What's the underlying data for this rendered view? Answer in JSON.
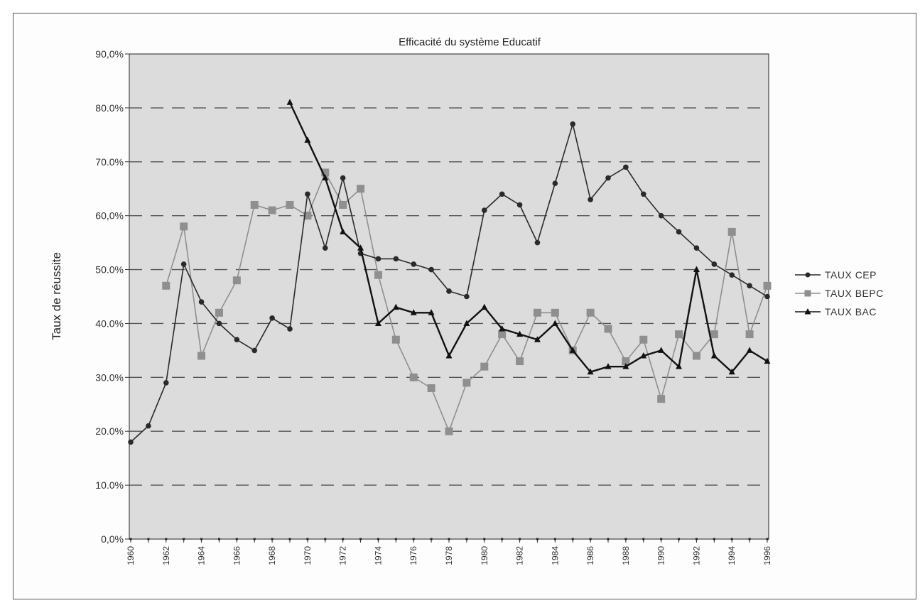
{
  "chart_data": {
    "type": "line",
    "title": "Efficacité du système Educatif",
    "xlabel": "",
    "ylabel": "Taux de réussite",
    "ylim": [
      0,
      90
    ],
    "xlim": [
      1960,
      1996
    ],
    "yticks": [
      "0,0%",
      "10.0%",
      "20.0%",
      "30.0%",
      "40.0%",
      "50.0%",
      "60,0%",
      "70.0%",
      "80.0%",
      "90,0%"
    ],
    "xtick_labels": [
      "1960",
      "1962",
      "1964",
      "1966",
      "1968",
      "1970",
      "1972",
      "1974",
      "1976",
      "1978",
      "1980",
      "1982",
      "1984",
      "1986",
      "1988",
      "1990",
      "1992",
      "1994",
      "1996"
    ],
    "grid": "horizontal dashed",
    "legend_position": "right",
    "series": [
      {
        "name": "TAUX CEP",
        "color": "#2a2a2a",
        "marker": "circle",
        "x": [
          1960,
          1961,
          1962,
          1963,
          1964,
          1965,
          1966,
          1967,
          1968,
          1969,
          1970,
          1971,
          1972,
          1973,
          1974,
          1975,
          1976,
          1977,
          1978,
          1979,
          1980,
          1981,
          1982,
          1983,
          1984,
          1985,
          1986,
          1987,
          1988,
          1989,
          1990,
          1991,
          1992,
          1993,
          1994,
          1995,
          1996
        ],
        "values": [
          18,
          21,
          29,
          51,
          44,
          40,
          37,
          35,
          41,
          39,
          64,
          54,
          67,
          53,
          52,
          52,
          51,
          50,
          46,
          45,
          61,
          64,
          62,
          55,
          66,
          77,
          63,
          67,
          69,
          64,
          60,
          57,
          54,
          51,
          49,
          47,
          45
        ]
      },
      {
        "name": "TAUX BEPC",
        "color": "#8f8f8f",
        "marker": "square",
        "x": [
          1962,
          1963,
          1964,
          1965,
          1966,
          1967,
          1968,
          1969,
          1970,
          1971,
          1972,
          1973,
          1974,
          1975,
          1976,
          1977,
          1978,
          1979,
          1980,
          1981,
          1982,
          1983,
          1984,
          1985,
          1986,
          1987,
          1988,
          1989,
          1990,
          1991,
          1992,
          1993,
          1994,
          1995,
          1996
        ],
        "values": [
          47,
          58,
          34,
          42,
          48,
          62,
          61,
          62,
          60,
          68,
          62,
          65,
          49,
          37,
          30,
          28,
          20,
          29,
          32,
          38,
          33,
          42,
          42,
          35,
          42,
          39,
          33,
          37,
          26,
          38,
          34,
          38,
          57,
          38,
          47
        ]
      },
      {
        "name": "TAUX BAC",
        "color": "#111111",
        "marker": "triangle",
        "x": [
          1969,
          1970,
          1971,
          1972,
          1973,
          1974,
          1975,
          1976,
          1977,
          1978,
          1979,
          1980,
          1981,
          1982,
          1983,
          1984,
          1985,
          1986,
          1987,
          1988,
          1989,
          1990,
          1991,
          1992,
          1993,
          1994,
          1995,
          1996
        ],
        "values": [
          81,
          74,
          67,
          57,
          54,
          40,
          43,
          42,
          42,
          34,
          40,
          43,
          39,
          38,
          37,
          40,
          35,
          31,
          32,
          32,
          34,
          35,
          32,
          50,
          34,
          31,
          35,
          33
        ]
      }
    ]
  }
}
